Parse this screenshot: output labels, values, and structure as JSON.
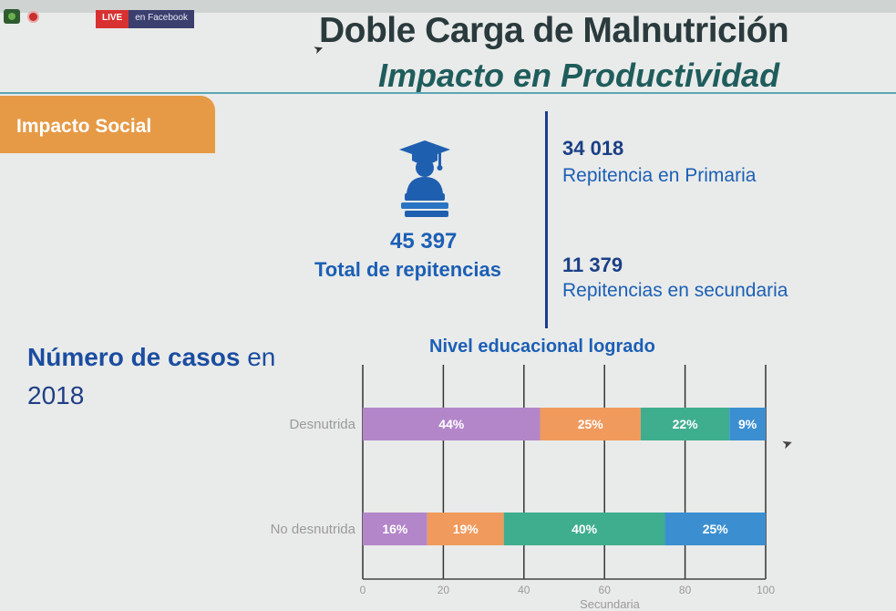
{
  "overlay": {
    "live_label": "LIVE",
    "platform_label": "en Facebook"
  },
  "slide": {
    "title": "Doble Carga de Malnutrición",
    "subtitle": "Impacto en Productividad",
    "section_tab": "Impacto Social"
  },
  "stats": {
    "total_value": "45 397",
    "total_label": "Total de repitencias",
    "primaria_value": "34 018",
    "primaria_label": "Repitencia en Primaria",
    "secundaria_value": "11 379",
    "secundaria_label": "Repitencias en secundaria"
  },
  "cases": {
    "title_bold": "Número de casos",
    "title_rest": " en",
    "year": "2018"
  },
  "icons": {
    "graduate": "graduate-icon",
    "live": "live-badge",
    "cursor": "mouse-cursor-icon"
  },
  "colors": {
    "accent_tab": "#e69a46",
    "blue_text": "#1c5fb5",
    "seg_purple": "#b386c9",
    "seg_orange": "#f09a5e",
    "seg_green": "#3fae8f",
    "seg_blue": "#3b8fd1"
  },
  "chart_data": {
    "type": "bar",
    "orientation": "horizontal",
    "stacked": true,
    "title": "Nivel educacional logrado",
    "categories": [
      "Desnutrida",
      "No desnutrida"
    ],
    "series": [
      {
        "values": [
          44,
          16
        ],
        "labels": [
          "44%",
          "16%"
        ],
        "color": "#b386c9"
      },
      {
        "values": [
          25,
          19
        ],
        "labels": [
          "25%",
          "19%"
        ],
        "color": "#f09a5e"
      },
      {
        "values": [
          22,
          40
        ],
        "labels": [
          "22%",
          "40%"
        ],
        "color": "#3fae8f"
      },
      {
        "values": [
          9,
          25
        ],
        "labels": [
          "9%",
          "25%"
        ],
        "color": "#3b8fd1"
      }
    ],
    "x_ticks": [
      "0",
      "20",
      "40",
      "60",
      "80",
      "100"
    ],
    "xlim": [
      0,
      100
    ],
    "xlabel": "Secundaria",
    "grid": true
  }
}
